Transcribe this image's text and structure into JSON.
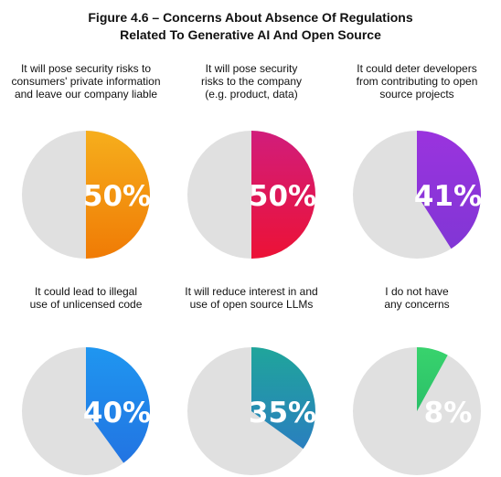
{
  "header": {
    "title_line1": "Figure 4.6 – Concerns About Absence Of Regulations",
    "title_line2": "Related To Generative AI And Open Source"
  },
  "chart_data": [
    {
      "type": "pie",
      "title": "It will pose security risks to\nconsumers' private information\nand leave our company liable",
      "value": 50,
      "label": "50%",
      "colors": {
        "top": "#f6ae1c",
        "bottom": "#f07b05",
        "rest": "#e0e0e0"
      }
    },
    {
      "type": "pie",
      "title": "It will pose security\nrisks to the company\n(e.g. product, data)",
      "value": 50,
      "label": "50%",
      "colors": {
        "top": "#d11d7b",
        "bottom": "#ec1236",
        "rest": "#e0e0e0"
      }
    },
    {
      "type": "pie",
      "title": "It could deter developers\nfrom contributing to open\nsource projects",
      "value": 41,
      "label": "41%",
      "colors": {
        "top": "#9a33de",
        "bottom": "#8136d5",
        "rest": "#e0e0e0"
      }
    },
    {
      "type": "pie",
      "title": "It could lead to illegal\nuse of unlicensed code",
      "value": 40,
      "label": "40%",
      "colors": {
        "top": "#1f96f0",
        "bottom": "#2274e2",
        "rest": "#e0e0e0"
      }
    },
    {
      "type": "pie",
      "title": "It will reduce interest in and\nuse of open source LLMs",
      "value": 35,
      "label": "35%",
      "colors": {
        "top": "#1fa59b",
        "bottom": "#2a7fbf",
        "rest": "#e0e0e0"
      }
    },
    {
      "type": "pie",
      "title": "I do not have\nany concerns",
      "value": 8,
      "label": "8%",
      "colors": {
        "top": "#38d36d",
        "bottom": "#2bc069",
        "rest": "#e0e0e0"
      },
      "label_color": "#2fbf6a"
    }
  ]
}
